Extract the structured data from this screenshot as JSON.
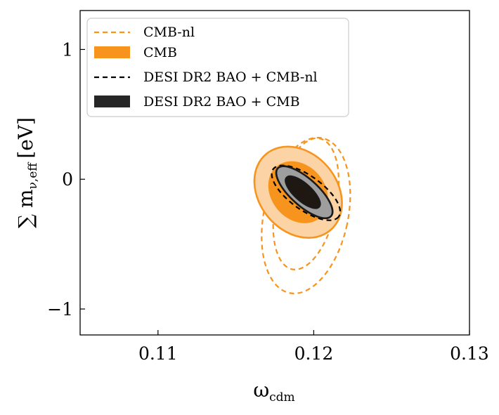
{
  "chart_data": {
    "type": "contour",
    "xlabel": "ω",
    "xlabel_sub": "cdm",
    "ylabel": "∑ m",
    "ylabel_sub": "ν,eff",
    "ylabel_unit": "[eV]",
    "xlim": [
      0.105,
      0.13
    ],
    "ylim": [
      -1.2,
      1.3
    ],
    "x_ticks": [
      {
        "value": 0.11,
        "label": "0.11"
      },
      {
        "value": 0.12,
        "label": "0.12"
      },
      {
        "value": 0.13,
        "label": "0.13"
      }
    ],
    "y_ticks": [
      {
        "value": 1,
        "label": "1"
      },
      {
        "value": 0,
        "label": "0"
      },
      {
        "value": -1,
        "label": "−1"
      }
    ],
    "grid": false,
    "legend_position": "top-left",
    "legend": [
      {
        "label": "CMB-nl",
        "style": "dashed",
        "color": "#f7941d"
      },
      {
        "label": "CMB",
        "style": "filled",
        "color": "#f7941d"
      },
      {
        "label": "DESI DR2 BAO + CMB-nl",
        "style": "dashed",
        "color": "#000000"
      },
      {
        "label": "DESI DR2 BAO + CMB",
        "style": "filled",
        "color": "#1a1a1a"
      }
    ],
    "series": [
      {
        "label": "CMB-nl",
        "style": "dashed",
        "color": "#f7941d",
        "contours": [
          {
            "level": "95%",
            "cx": 0.1195,
            "cy": -0.28,
            "sx": 0.0027,
            "sy": 0.61,
            "angle": 12
          },
          {
            "level": "68%",
            "cx": 0.1195,
            "cy": -0.19,
            "sx": 0.00195,
            "sy": 0.515,
            "angle": 12
          }
        ]
      },
      {
        "label": "CMB",
        "style": "filled",
        "color": "#f7941d",
        "contours": [
          {
            "level": "95%",
            "cx": 0.119,
            "cy": -0.1,
            "sx": 0.0032,
            "sy": 0.3,
            "angle": 50,
            "fill": "#fcd3a5"
          },
          {
            "level": "68%",
            "cx": 0.119,
            "cy": -0.1,
            "sx": 0.0021,
            "sy": 0.2,
            "angle": 50,
            "fill": "#f7941d"
          }
        ]
      },
      {
        "label": "DESI DR2 BAO + CMB-nl",
        "style": "dashed",
        "color": "#000000",
        "contours": [
          {
            "level": "95%",
            "cx": 0.1195,
            "cy": -0.105,
            "sx": 0.0026,
            "sy": 0.13,
            "angle": 36
          },
          {
            "level": "68%",
            "cx": 0.1193,
            "cy": -0.1,
            "sx": 0.0017,
            "sy": 0.085,
            "angle": 36
          }
        ]
      },
      {
        "label": "DESI DR2 BAO + CMB",
        "style": "filled",
        "color": "#1a1a1a",
        "contours": [
          {
            "level": "95%",
            "cx": 0.1194,
            "cy": -0.1,
            "sx": 0.0023,
            "sy": 0.105,
            "angle": 42,
            "fill": "#9e9e9e"
          },
          {
            "level": "68%",
            "cx": 0.1193,
            "cy": -0.1,
            "sx": 0.0014,
            "sy": 0.065,
            "angle": 42,
            "fill": "#1f1712"
          }
        ]
      }
    ]
  }
}
